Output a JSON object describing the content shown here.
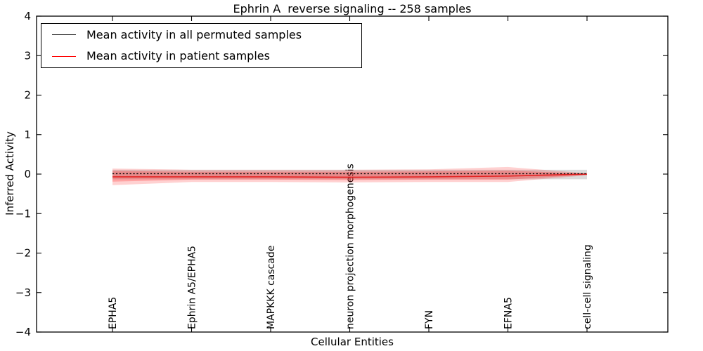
{
  "figure": {
    "background": "#ffffff",
    "border_color": "#000000"
  },
  "chart_data": {
    "type": "line",
    "title": "Ephrin A  reverse signaling -- 258 samples",
    "xlabel": "Cellular Entities",
    "ylabel": "Inferred Activity",
    "ylim": [
      -4,
      4
    ],
    "yticks": [
      4,
      3,
      2,
      1,
      0,
      -1,
      -2,
      -3,
      -4
    ],
    "ytick_labels": [
      "4",
      "3",
      "2",
      "1",
      "0",
      "−1",
      "−2",
      "−3",
      "−4"
    ],
    "grid": false,
    "legend_position": "upper left",
    "categories": [
      "EPHA5",
      "Ephrin A5/EPHA5",
      "MAPKKK cascade",
      "neuron projection morphogenesis",
      "FYN",
      "EFNA5",
      "cell-cell signaling"
    ],
    "series": [
      {
        "name": "Mean activity in all permuted samples",
        "color": "#000000",
        "line_style": "dotted",
        "values": [
          0.01,
          0.01,
          0.01,
          0.01,
          0.01,
          0.01,
          0.01
        ],
        "bands": [
          {
            "upper": [
              0.11,
              0.11,
              0.11,
              0.11,
              0.11,
              0.11,
              0.11
            ],
            "lower": [
              -0.13,
              -0.13,
              -0.13,
              -0.13,
              -0.13,
              -0.13,
              -0.13
            ],
            "color": "#999999",
            "opacity": 0.35
          }
        ]
      },
      {
        "name": "Mean activity in patient samples",
        "color": "#ff0000",
        "line_color": "#e42222",
        "line_style": "solid",
        "values": [
          -0.07,
          -0.07,
          -0.07,
          -0.08,
          -0.07,
          -0.05,
          0.0
        ],
        "bands": [
          {
            "upper": [
              0.14,
              0.11,
              0.11,
              0.11,
              0.12,
              0.18,
              0.02
            ],
            "lower": [
              -0.28,
              -0.2,
              -0.2,
              -0.21,
              -0.2,
              -0.2,
              -0.03
            ],
            "color": "#ff0000",
            "opacity": 0.18
          },
          {
            "upper": [
              0.08,
              0.06,
              0.06,
              0.06,
              0.07,
              0.09,
              0.01
            ],
            "lower": [
              -0.19,
              -0.14,
              -0.14,
              -0.15,
              -0.14,
              -0.14,
              -0.02
            ],
            "color": "#ff0000",
            "opacity": 0.22
          }
        ]
      }
    ]
  }
}
